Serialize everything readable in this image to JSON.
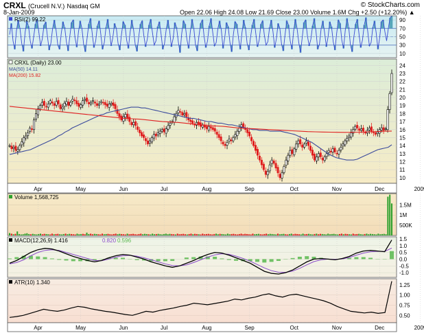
{
  "header": {
    "symbol": "CRXL",
    "name": "(Crucell N.V.)",
    "exchange": "Nasdaq GM",
    "watermark": "© StockCharts.com",
    "date": "8-Jan-2009",
    "quote": "Open 22.06  High 24.08  Low 21.69  Close 23.00  Volume 1.6M  Chg +2.50 (+12.20%) ▲"
  },
  "colors": {
    "price_bg": "#f5ecc9",
    "rsi_bg": "#d7eef6",
    "volume_bg": "#f6e3bd",
    "macd_bg": "#f2f2e6",
    "atr_bg": "#f8e6dc",
    "ma50": "#3a4a9c",
    "ma200": "#e02020",
    "up": "#000000",
    "down": "#e02020",
    "volume_up": "#2ca02c",
    "macd_line": "#000000",
    "signal_line": "#8a4bc9",
    "histogram": "#59b84f",
    "rsi_line": "#3a4ad2",
    "rsi_fill": "#2f8fa8"
  },
  "chart_data": [
    {
      "type": "line",
      "panel": "rsi",
      "legend": "RSI(2) 99.22",
      "ylim": [
        0,
        100
      ],
      "ticks": [
        10,
        30,
        50,
        70,
        90
      ],
      "overbought": 70,
      "oversold": 30,
      "values": [
        55,
        82,
        40,
        20,
        65,
        90,
        70,
        35,
        15,
        60,
        88,
        75,
        40,
        22,
        50,
        80,
        92,
        60,
        28,
        45,
        78,
        85,
        50,
        18,
        35,
        70,
        90,
        66,
        30,
        20,
        58,
        86,
        72,
        38,
        16,
        52,
        84,
        90,
        48,
        25,
        62,
        88,
        70,
        32,
        14,
        46,
        80,
        94,
        58,
        24,
        40,
        76,
        88,
        55,
        20,
        36,
        72,
        92,
        64,
        28,
        48,
        82,
        70,
        34,
        18,
        56,
        86,
        78,
        42,
        22,
        60,
        90,
        68,
        30,
        15,
        50,
        80,
        88,
        52,
        26,
        44,
        78,
        92,
        60,
        30,
        40,
        74,
        86,
        56,
        20,
        34,
        68,
        90,
        64,
        26,
        46,
        84,
        72,
        38,
        12,
        58,
        88,
        80,
        44,
        22,
        62,
        92,
        70,
        30,
        16,
        52,
        82,
        90,
        50,
        24,
        40,
        76,
        94,
        60,
        28,
        36,
        70,
        88,
        66,
        22,
        48,
        84,
        74,
        36,
        14,
        56,
        86,
        80,
        46,
        20,
        60,
        90,
        72,
        34,
        18,
        50,
        78,
        92,
        58,
        26,
        42,
        80,
        88,
        54,
        30,
        38,
        72,
        90,
        62,
        24,
        46,
        82,
        70,
        32,
        16,
        54,
        88,
        78,
        40,
        20,
        64,
        92,
        70,
        36,
        12,
        48,
        84,
        90,
        52,
        28,
        44,
        76,
        94,
        62,
        20,
        32,
        70,
        88,
        60,
        26,
        50,
        86,
        74,
        38,
        18,
        58,
        90,
        82,
        42,
        22,
        66,
        94,
        72,
        30,
        14,
        50,
        80,
        92,
        56,
        24,
        42,
        78,
        96,
        64,
        28,
        36,
        72,
        88,
        58,
        20,
        48,
        86,
        90,
        62,
        40,
        70,
        95,
        99.22
      ]
    },
    {
      "type": "candlestick",
      "panel": "price",
      "legend": "CRXL (Daily) 23.00",
      "series": [
        {
          "name": "MA(50) 14.11",
          "role": "ma50"
        },
        {
          "name": "MA(200) 15.82",
          "role": "ma200"
        }
      ],
      "ylim": [
        9.3,
        24.8
      ],
      "y_ticks": [
        10,
        11,
        12,
        13,
        14,
        15,
        16,
        17,
        18,
        19,
        20,
        21,
        22,
        23,
        24
      ],
      "x_ticks": [
        "Apr",
        "May",
        "Jun",
        "Jul",
        "Aug",
        "Sep",
        "Oct",
        "Nov",
        "Dec",
        "2009"
      ],
      "x_tick_index": [
        14,
        35,
        56,
        76,
        97,
        118,
        140,
        161,
        182,
        202
      ],
      "close": [
        14.0,
        13.6,
        13.8,
        13.4,
        13.5,
        14.0,
        14.5,
        15.0,
        15.2,
        15.6,
        16.2,
        16.0,
        17.2,
        18.0,
        18.6,
        19.0,
        19.4,
        19.0,
        18.8,
        19.2,
        19.6,
        19.3,
        19.0,
        19.5,
        19.2,
        18.6,
        18.8,
        19.3,
        19.5,
        19.0,
        19.4,
        19.8,
        19.6,
        19.2,
        18.9,
        19.1,
        19.6,
        19.8,
        19.5,
        19.2,
        19.4,
        19.6,
        19.3,
        19.0,
        19.2,
        19.5,
        19.4,
        19.1,
        18.9,
        19.2,
        19.3,
        19.0,
        18.6,
        18.0,
        17.6,
        17.2,
        17.6,
        17.9,
        17.4,
        17.0,
        16.6,
        16.9,
        16.5,
        16.0,
        15.6,
        15.2,
        15.0,
        14.6,
        14.2,
        14.6,
        15.0,
        15.4,
        15.2,
        15.6,
        15.8,
        16.0,
        15.7,
        16.1,
        16.5,
        16.8,
        17.0,
        17.6,
        18.0,
        18.4,
        18.2,
        17.8,
        18.0,
        17.6,
        17.2,
        17.0,
        16.8,
        16.6,
        16.9,
        16.7,
        16.4,
        16.6,
        16.3,
        16.1,
        16.4,
        16.2,
        16.0,
        15.8,
        15.4,
        15.0,
        14.6,
        14.2,
        14.0,
        14.4,
        14.8,
        14.6,
        15.0,
        15.4,
        15.8,
        16.2,
        16.6,
        16.3,
        16.0,
        15.6,
        15.2,
        14.6,
        14.0,
        13.4,
        12.8,
        12.2,
        11.6,
        11.0,
        10.4,
        10.8,
        11.6,
        12.2,
        11.8,
        11.2,
        10.6,
        10.0,
        10.6,
        11.4,
        12.2,
        12.8,
        13.4,
        13.0,
        13.6,
        14.2,
        14.6,
        14.2,
        13.8,
        14.2,
        14.6,
        14.0,
        13.4,
        12.8,
        12.2,
        12.6,
        13.0,
        12.6,
        12.2,
        12.6,
        13.0,
        13.4,
        13.2,
        13.6,
        13.2,
        13.0,
        13.4,
        13.8,
        14.2,
        14.6,
        14.9,
        15.2,
        15.6,
        16.0,
        16.4,
        16.2,
        15.9,
        16.1,
        15.8,
        15.6,
        15.9,
        16.2,
        15.8,
        15.6,
        15.4,
        15.7,
        16.0,
        16.2,
        15.9,
        16.1,
        18.5,
        20.5,
        23.0
      ],
      "ma50": [
        12.9,
        13.0,
        13.1,
        13.2,
        13.3,
        13.4,
        13.5,
        13.7,
        13.9,
        14.1,
        14.3,
        14.5,
        14.7,
        14.9,
        15.2,
        15.4,
        15.7,
        15.9,
        16.2,
        16.4,
        16.6,
        16.8,
        17.0,
        17.2,
        17.4,
        17.6,
        17.8,
        17.9,
        18.1,
        18.2,
        18.3,
        18.4,
        18.5,
        18.6,
        18.7,
        18.8,
        18.8,
        18.8,
        18.7,
        18.7,
        18.6,
        18.5,
        18.4,
        18.3,
        18.2,
        18.1,
        18.0,
        17.9,
        17.8,
        17.7,
        17.6,
        17.5,
        17.4,
        17.4,
        17.3,
        17.2,
        17.1,
        17.0,
        17.0,
        16.9,
        16.8,
        16.8,
        16.7,
        16.6,
        16.6,
        16.5,
        16.4,
        16.3,
        16.2,
        16.1,
        16.0,
        16.0,
        15.9,
        15.9,
        15.9,
        15.8,
        15.8,
        15.8,
        15.8,
        15.7,
        15.6,
        15.5,
        15.4,
        15.2,
        15.0,
        14.8,
        14.6,
        14.4,
        14.1,
        13.8,
        13.5,
        13.2,
        12.9,
        12.7,
        12.5,
        12.4,
        12.3,
        12.2,
        12.2,
        12.2,
        12.3,
        12.5,
        12.7,
        12.9,
        13.1,
        13.3,
        13.5,
        13.6,
        13.7,
        13.8,
        14.11
      ],
      "ma200": [
        18.9,
        18.8,
        18.7,
        18.6,
        18.5,
        18.4,
        18.3,
        18.2,
        18.1,
        18.0,
        17.9,
        17.8,
        17.7,
        17.6,
        17.5,
        17.4,
        17.35,
        17.3,
        17.2,
        17.1,
        17.0,
        16.95,
        16.9,
        16.8,
        16.7,
        16.6,
        16.5,
        16.45,
        16.4,
        16.3,
        16.2,
        16.15,
        16.1,
        16.05,
        16.0,
        15.95,
        15.9,
        15.85,
        15.8,
        15.75,
        15.72,
        15.7,
        15.68,
        15.66,
        15.65,
        15.66,
        15.68,
        15.72,
        15.75,
        15.8,
        15.82
      ]
    },
    {
      "type": "bar",
      "panel": "volume",
      "legend": "Volume 1,568,725",
      "y_ticks": [
        "500K",
        "1M",
        "1.5M"
      ],
      "y_tick_values": [
        500000,
        1000000,
        1500000
      ],
      "ylim": [
        0,
        2050000
      ],
      "values": [
        120000,
        90000,
        60000,
        80000,
        200000,
        70000,
        50000,
        60000,
        90000,
        110000,
        70000,
        60000,
        80000,
        60000,
        50000,
        70000,
        90000,
        60000,
        80000,
        70000,
        60000,
        50000,
        90000,
        60000,
        70000,
        80000,
        60000,
        50000,
        70000,
        90000,
        60000,
        80000,
        70000,
        60000,
        50000,
        90000,
        60000,
        70000,
        80000,
        60000,
        140000,
        70000,
        90000,
        60000,
        80000,
        70000,
        60000,
        50000,
        90000,
        60000,
        70000,
        80000,
        60000,
        50000,
        70000,
        90000,
        60000,
        80000,
        70000,
        60000,
        50000,
        90000,
        60000,
        70000,
        80000,
        60000,
        50000,
        70000,
        90000,
        60000,
        80000,
        70000,
        60000,
        50000,
        90000,
        60000,
        70000,
        80000,
        60000,
        50000,
        70000,
        90000,
        60000,
        80000,
        70000,
        60000,
        50000,
        90000,
        60000,
        70000,
        80000,
        60000,
        50000,
        70000,
        90000,
        60000,
        80000,
        70000,
        60000,
        50000,
        90000,
        60000,
        70000,
        80000,
        60000,
        50000,
        70000,
        90000,
        60000,
        80000,
        70000,
        60000,
        50000,
        90000,
        60000,
        70000,
        80000,
        60000,
        50000,
        70000,
        90000,
        60000,
        80000,
        70000,
        60000,
        50000,
        90000,
        60000,
        70000,
        80000,
        60000,
        50000,
        70000,
        90000,
        60000,
        80000,
        70000,
        60000,
        50000,
        90000,
        60000,
        70000,
        80000,
        60000,
        50000,
        70000,
        90000,
        60000,
        80000,
        70000,
        60000,
        50000,
        90000,
        60000,
        70000,
        80000,
        60000,
        50000,
        70000,
        90000,
        60000,
        80000,
        70000,
        60000,
        50000,
        90000,
        60000,
        70000,
        80000,
        60000,
        50000,
        70000,
        90000,
        60000,
        80000,
        70000,
        60000,
        50000,
        90000,
        60000,
        70000,
        80000,
        60000,
        50000,
        70000,
        90000,
        60000,
        80000,
        70000,
        60000,
        50000,
        90000,
        60000,
        70000,
        80000,
        60000,
        1900000,
        2000000,
        1568725
      ]
    },
    {
      "type": "line",
      "panel": "macd",
      "legend": [
        "MACD(12,26,9) 1.416",
        "0.820",
        "0.596"
      ],
      "ylim": [
        -1.35,
        1.65
      ],
      "y_ticks": [
        "-1.0",
        "-0.5",
        "0.0",
        "0.5",
        "1.0",
        "1.5"
      ],
      "y_tick_values": [
        -1.0,
        -0.5,
        0.0,
        0.5,
        1.0,
        1.5
      ],
      "macd": [
        -0.3,
        -0.1,
        0.2,
        0.5,
        0.7,
        0.8,
        0.75,
        0.6,
        0.4,
        0.2,
        0.05,
        -0.1,
        -0.2,
        -0.1,
        0.1,
        0.25,
        0.35,
        0.3,
        0.15,
        0.0,
        -0.2,
        -0.35,
        -0.5,
        -0.6,
        -0.5,
        -0.3,
        -0.1,
        0.15,
        0.35,
        0.5,
        0.45,
        0.3,
        0.1,
        -0.1,
        -0.3,
        -0.6,
        -0.9,
        -1.05,
        -1.1,
        -1.0,
        -0.8,
        -0.5,
        -0.2,
        0.0,
        0.05,
        0.0,
        -0.05,
        0.05,
        0.2,
        0.45,
        0.6,
        0.65,
        0.6,
        0.55,
        1.416
      ],
      "signal": [
        -0.35,
        -0.25,
        -0.05,
        0.25,
        0.5,
        0.65,
        0.7,
        0.65,
        0.5,
        0.35,
        0.2,
        0.05,
        -0.1,
        -0.12,
        0.0,
        0.15,
        0.25,
        0.28,
        0.22,
        0.1,
        -0.05,
        -0.2,
        -0.35,
        -0.47,
        -0.5,
        -0.42,
        -0.25,
        -0.05,
        0.15,
        0.32,
        0.4,
        0.36,
        0.22,
        0.05,
        -0.15,
        -0.4,
        -0.65,
        -0.85,
        -0.97,
        -0.98,
        -0.88,
        -0.68,
        -0.42,
        -0.18,
        -0.05,
        0.0,
        -0.02,
        0.02,
        0.12,
        0.3,
        0.45,
        0.55,
        0.58,
        0.57,
        0.82
      ],
      "histogram": [
        0.05,
        0.15,
        0.25,
        0.25,
        0.2,
        0.15,
        0.05,
        -0.05,
        -0.1,
        -0.15,
        -0.15,
        -0.15,
        -0.1,
        0.02,
        0.1,
        0.1,
        0.1,
        0.02,
        -0.07,
        -0.1,
        -0.15,
        -0.15,
        -0.15,
        -0.13,
        0.0,
        0.12,
        0.15,
        0.2,
        0.2,
        0.18,
        0.05,
        -0.06,
        -0.12,
        -0.15,
        -0.15,
        -0.2,
        -0.25,
        -0.2,
        -0.13,
        -0.02,
        0.08,
        0.18,
        0.22,
        0.18,
        0.1,
        0.0,
        -0.03,
        0.03,
        0.08,
        0.15,
        0.15,
        0.1,
        0.02,
        -0.02,
        0.596
      ]
    },
    {
      "type": "line",
      "panel": "atr",
      "legend": "ATR(10) 1.340",
      "ylim": [
        0.32,
        1.4
      ],
      "y_ticks": [
        "0.50",
        "0.75",
        "1.00",
        "1.25"
      ],
      "y_tick_values": [
        0.5,
        0.75,
        1.0,
        1.25
      ],
      "values": [
        0.45,
        0.47,
        0.5,
        0.55,
        0.6,
        0.65,
        0.62,
        0.6,
        0.63,
        0.68,
        0.72,
        0.7,
        0.66,
        0.63,
        0.6,
        0.58,
        0.55,
        0.52,
        0.5,
        0.55,
        0.6,
        0.58,
        0.62,
        0.65,
        0.68,
        0.72,
        0.75,
        0.8,
        0.78,
        0.76,
        0.79,
        0.82,
        0.85,
        0.9,
        0.88,
        0.92,
        0.95,
        1.0,
        1.03,
        0.98,
        0.95,
        1.0,
        1.02,
        0.98,
        0.94,
        0.9,
        0.86,
        0.8,
        0.72,
        0.66,
        0.6,
        0.58,
        0.56,
        0.58,
        0.55,
        0.57,
        1.34
      ]
    }
  ]
}
